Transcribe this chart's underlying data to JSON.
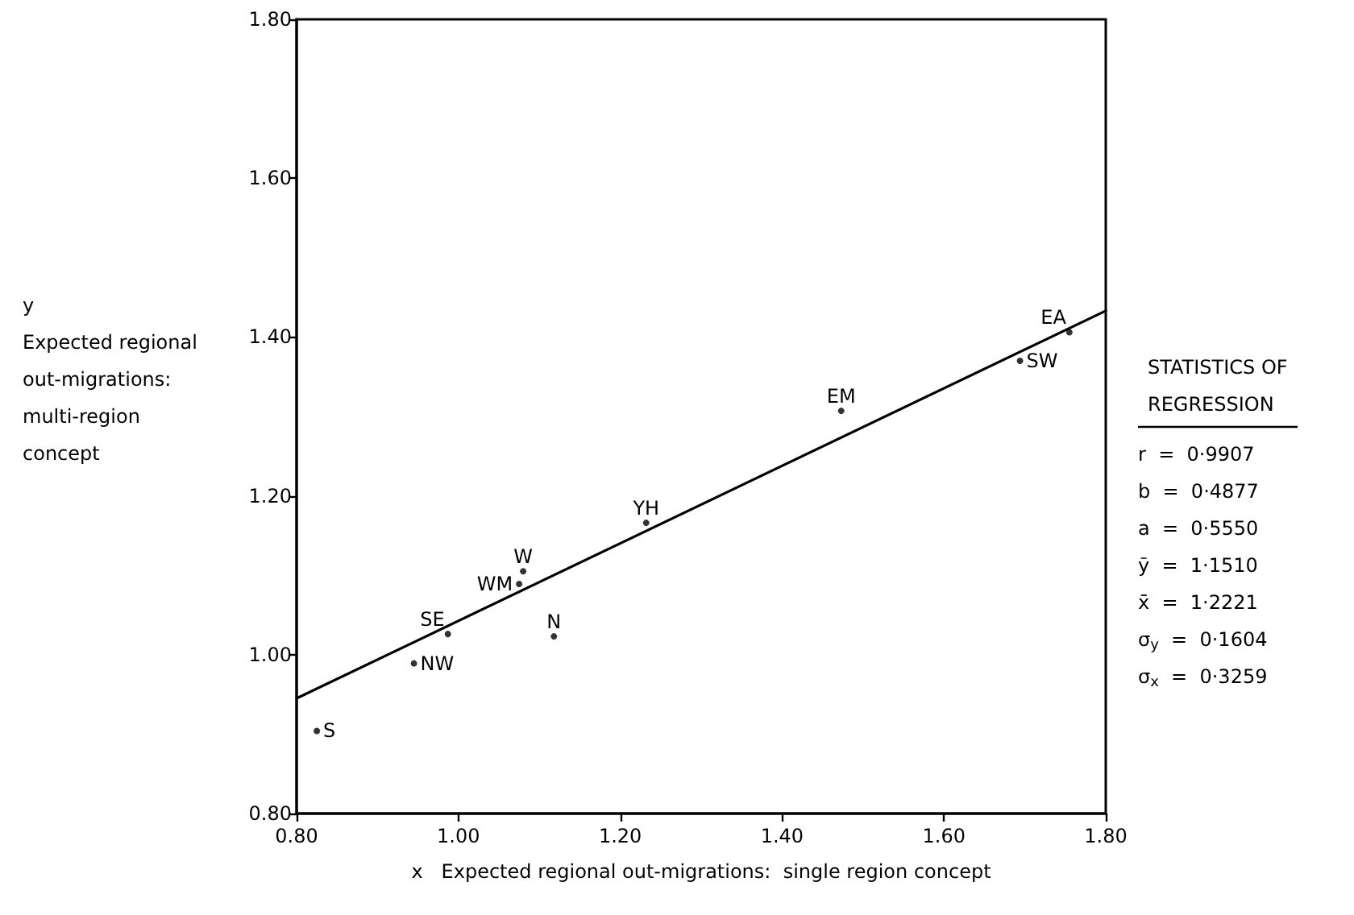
{
  "chart_data": {
    "type": "scatter",
    "xlabel": "x   Expected regional out-migrations:  single region concept",
    "ylabel": "y\nExpected regional\nout-migrations:\nmulti-region\nconcept",
    "xlim": [
      0.8,
      1.8
    ],
    "ylim": [
      0.8,
      1.8
    ],
    "xticks": [
      {
        "value": 0.8,
        "label": "0.80"
      },
      {
        "value": 1.0,
        "label": "1.00"
      },
      {
        "value": 1.2,
        "label": "1.20"
      },
      {
        "value": 1.4,
        "label": "1.40"
      },
      {
        "value": 1.6,
        "label": "1.60"
      },
      {
        "value": 1.8,
        "label": "1.80"
      }
    ],
    "yticks": [
      {
        "value": 0.8,
        "label": "0.80"
      },
      {
        "value": 1.0,
        "label": "1.00"
      },
      {
        "value": 1.2,
        "label": "1.20"
      },
      {
        "value": 1.4,
        "label": "1.40"
      },
      {
        "value": 1.6,
        "label": "1.60"
      },
      {
        "value": 1.8,
        "label": "1.80"
      }
    ],
    "grid": false,
    "series": [
      {
        "color": "#000000",
        "marker": "circle",
        "x": [
          0.825,
          0.945,
          0.987,
          1.075,
          1.08,
          1.118,
          1.232,
          1.473,
          1.694,
          1.755
        ],
        "values": [
          0.904,
          0.989,
          1.026,
          1.089,
          1.105,
          1.023,
          1.166,
          1.307,
          1.37,
          1.406
        ]
      },
      {
        "type": "line",
        "color": "#000000",
        "marker": "none",
        "line_style": "solid",
        "x": [
          0.8,
          1.8
        ],
        "values": [
          0.945,
          1.433
        ]
      }
    ],
    "annotations": [
      {
        "text": "S",
        "x": 0.825,
        "y": 0.904
      },
      {
        "text": "NW",
        "x": 0.945,
        "y": 0.989
      },
      {
        "text": "SE",
        "x": 0.987,
        "y": 1.026
      },
      {
        "text": "WM",
        "x": 1.075,
        "y": 1.089
      },
      {
        "text": "W",
        "x": 1.08,
        "y": 1.105
      },
      {
        "text": "N",
        "x": 1.118,
        "y": 1.023
      },
      {
        "text": "YH",
        "x": 1.232,
        "y": 1.166
      },
      {
        "text": "EM",
        "x": 1.473,
        "y": 1.307
      },
      {
        "text": "SW",
        "x": 1.694,
        "y": 1.37
      },
      {
        "text": "EA",
        "x": 1.755,
        "y": 1.406
      },
      "STATISTICS OF",
      "REGRESSION",
      "r  =  0·9907",
      "b  =  0·4877",
      "a  =  0·5550",
      "ȳ  =  1·1510",
      "x̄  =  1·2221",
      "σ$_{y}$  =  0·1604",
      "σ$_{x}$  =  0·3259"
    ]
  }
}
